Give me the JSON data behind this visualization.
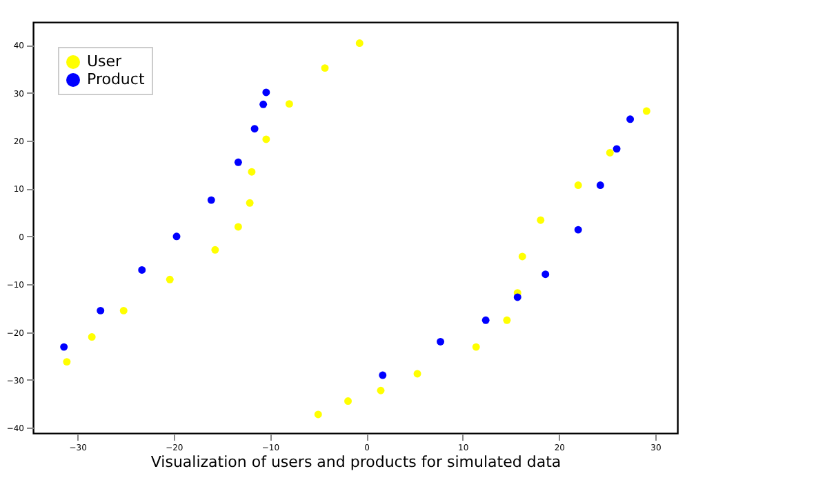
{
  "chart_data": {
    "type": "scatter",
    "xlabel": "Visualization of users and products for simulated data",
    "xlim": [
      -34.6,
      32.3
    ],
    "ylim": [
      -41.1,
      44.8
    ],
    "xticks": [
      -30,
      -20,
      -10,
      0,
      10,
      20,
      30
    ],
    "yticks": [
      -40,
      -30,
      -20,
      -10,
      0,
      10,
      20,
      30,
      40
    ],
    "legend": "top left",
    "marker": "circle",
    "grid": false,
    "series": [
      {
        "name": "User",
        "color": "#ffff00",
        "x": [
          -31.1,
          -28.5,
          -25.2,
          -20.4,
          -15.7,
          -13.3,
          -12.1,
          -11.9,
          -10.4,
          -8.0,
          -4.3,
          -0.7,
          -5.0,
          -1.9,
          1.5,
          5.3,
          11.4,
          14.6,
          15.7,
          16.2,
          18.1,
          22.0,
          25.3,
          29.1
        ],
        "values": [
          -26.2,
          -21.0,
          -15.5,
          -9.0,
          -2.8,
          2.0,
          7.0,
          13.5,
          20.3,
          27.7,
          35.2,
          40.4,
          -37.2,
          -34.4,
          -32.2,
          -28.7,
          -23.1,
          -17.5,
          -11.8,
          -4.2,
          3.4,
          10.7,
          17.5,
          26.2
        ]
      },
      {
        "name": "Product",
        "color": "#0000ff",
        "x": [
          -31.4,
          -27.6,
          -23.3,
          -19.7,
          -16.1,
          -13.3,
          -11.6,
          -10.7,
          -10.4,
          1.7,
          7.7,
          12.4,
          15.7,
          18.6,
          22.0,
          24.3,
          26.0,
          27.4
        ],
        "values": [
          -23.1,
          -15.5,
          -7.0,
          0,
          7.6,
          15.5,
          22.5,
          27.6,
          30.1,
          -29.0,
          -22.0,
          -17.5,
          -12.7,
          -7.9,
          1.4,
          10.7,
          18.3,
          24.5
        ]
      }
    ]
  }
}
